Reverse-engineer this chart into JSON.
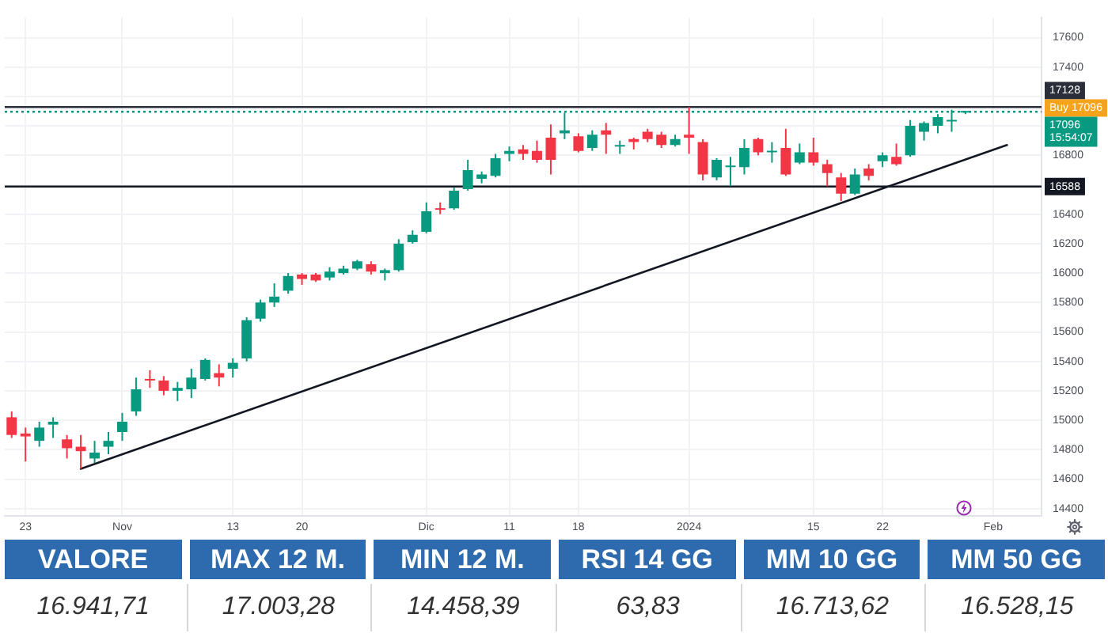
{
  "chart_data": [
    {
      "type": "candlestick",
      "categories": [
        null,
        "23",
        null,
        null,
        null,
        null,
        null,
        null,
        "Nov",
        null,
        null,
        null,
        null,
        null,
        null,
        null,
        "13",
        null,
        null,
        null,
        null,
        "20",
        null,
        null,
        null,
        null,
        null,
        null,
        null,
        null,
        "Dic",
        null,
        null,
        null,
        null,
        null,
        "11",
        null,
        null,
        null,
        null,
        "18",
        null,
        null,
        null,
        null,
        null,
        null,
        null,
        "2024",
        null,
        null,
        null,
        null,
        null,
        null,
        null,
        null,
        "15",
        null,
        null,
        null,
        null,
        "22",
        null,
        null,
        null,
        null,
        null,
        null,
        null,
        "Feb",
        null,
        null,
        null
      ],
      "ohlc": [
        [
          15020,
          15060,
          14880,
          14900
        ],
        [
          14910,
          14950,
          14720,
          14890
        ],
        [
          14860,
          14990,
          14820,
          14950
        ],
        [
          14970,
          15020,
          14880,
          14990
        ],
        [
          14870,
          14900,
          14740,
          14810
        ],
        [
          14820,
          14900,
          14670,
          14790
        ],
        [
          14740,
          14860,
          14710,
          14780
        ],
        [
          14820,
          14920,
          14770,
          14860
        ],
        [
          14920,
          15050,
          14860,
          14990
        ],
        [
          15060,
          15290,
          15030,
          15210
        ],
        [
          15280,
          15340,
          15220,
          15270
        ],
        [
          15270,
          15300,
          15170,
          15200
        ],
        [
          15200,
          15260,
          15130,
          15220
        ],
        [
          15210,
          15350,
          15150,
          15290
        ],
        [
          15280,
          15420,
          15270,
          15410
        ],
        [
          15320,
          15380,
          15230,
          15290
        ],
        [
          15350,
          15420,
          15290,
          15390
        ],
        [
          15420,
          15700,
          15400,
          15680
        ],
        [
          15690,
          15820,
          15670,
          15800
        ],
        [
          15800,
          15930,
          15770,
          15840
        ],
        [
          15880,
          16000,
          15860,
          15980
        ],
        [
          15990,
          16000,
          15920,
          15960
        ],
        [
          15990,
          16000,
          15940,
          15950
        ],
        [
          15970,
          16040,
          15950,
          16010
        ],
        [
          16000,
          16050,
          15990,
          16030
        ],
        [
          16030,
          16090,
          16020,
          16080
        ],
        [
          16060,
          16080,
          15990,
          16010
        ],
        [
          16000,
          16030,
          15950,
          16020
        ],
        [
          16020,
          16230,
          16010,
          16200
        ],
        [
          16210,
          16290,
          16200,
          16260
        ],
        [
          16280,
          16480,
          16270,
          16420
        ],
        [
          16440,
          16480,
          16400,
          16430
        ],
        [
          16440,
          16580,
          16430,
          16560
        ],
        [
          16570,
          16770,
          16560,
          16700
        ],
        [
          16640,
          16690,
          16610,
          16670
        ],
        [
          16660,
          16810,
          16650,
          16780
        ],
        [
          16810,
          16860,
          16760,
          16830
        ],
        [
          16840,
          16870,
          16770,
          16810
        ],
        [
          16830,
          16900,
          16750,
          16770
        ],
        [
          16920,
          17010,
          16670,
          16770
        ],
        [
          16950,
          17090,
          16910,
          16970
        ],
        [
          16930,
          16950,
          16820,
          16830
        ],
        [
          16850,
          16970,
          16830,
          16940
        ],
        [
          16970,
          17020,
          16810,
          16940
        ],
        [
          16860,
          16900,
          16810,
          16870
        ],
        [
          16910,
          16920,
          16840,
          16890
        ],
        [
          16960,
          16980,
          16890,
          16910
        ],
        [
          16940,
          16960,
          16850,
          16870
        ],
        [
          16870,
          16940,
          16860,
          16910
        ],
        [
          16940,
          17130,
          16810,
          16920
        ],
        [
          16890,
          16910,
          16630,
          16670
        ],
        [
          16650,
          16780,
          16630,
          16770
        ],
        [
          16720,
          16790,
          16590,
          16730
        ],
        [
          16720,
          16910,
          16670,
          16850
        ],
        [
          16910,
          16920,
          16800,
          16820
        ],
        [
          16820,
          16890,
          16750,
          16830
        ],
        [
          16850,
          16980,
          16660,
          16670
        ],
        [
          16750,
          16880,
          16740,
          16820
        ],
        [
          16820,
          16920,
          16730,
          16750
        ],
        [
          16740,
          16770,
          16590,
          16680
        ],
        [
          16650,
          16680,
          16490,
          16540
        ],
        [
          16540,
          16710,
          16530,
          16670
        ],
        [
          16710,
          16740,
          16630,
          16660
        ],
        [
          16760,
          16820,
          16720,
          16800
        ],
        [
          16790,
          16880,
          16730,
          16740
        ],
        [
          16800,
          17040,
          16790,
          17000
        ],
        [
          16960,
          17030,
          16900,
          17020
        ],
        [
          17000,
          17080,
          16950,
          17060
        ],
        [
          17030,
          17110,
          16960,
          17040
        ],
        [
          17090,
          17100,
          17080,
          17096
        ],
        null,
        null,
        null,
        null,
        null
      ],
      "colors": [
        "#f23645",
        "#f23645",
        "#089981",
        "#089981",
        "#f23645",
        "#f23645",
        "#089981",
        "#089981",
        "#089981",
        "#089981",
        "#f23645",
        "#f23645",
        "#089981",
        "#089981",
        "#089981",
        "#f23645",
        "#089981",
        "#089981",
        "#089981",
        "#089981",
        "#089981",
        "#f23645",
        "#f23645",
        "#089981",
        "#089981",
        "#089981",
        "#f23645",
        "#089981",
        "#089981",
        "#089981",
        "#089981",
        "#f23645",
        "#089981",
        "#089981",
        "#089981",
        "#089981",
        "#089981",
        "#f23645",
        "#f23645",
        "#f23645",
        "#089981",
        "#f23645",
        "#089981",
        "#f23645",
        "#089981",
        "#f23645",
        "#f23645",
        "#f23645",
        "#089981",
        "#f23645",
        "#f23645",
        "#089981",
        "#089981",
        "#089981",
        "#f23645",
        "#089981",
        "#f23645",
        "#089981",
        "#f23645",
        "#f23645",
        "#f23645",
        "#089981",
        "#f23645",
        "#089981",
        "#f23645",
        "#089981",
        "#089981",
        "#089981",
        "#089981",
        "#089981",
        null,
        null,
        null,
        null,
        null
      ],
      "series": [
        {
          "type": "line",
          "color": "#131722",
          "values": [
            null,
            null,
            null,
            null,
            null,
            14670,
            null,
            null,
            null,
            null,
            null,
            null,
            null,
            null,
            null,
            null,
            null,
            null,
            null,
            null,
            null,
            null,
            null,
            null,
            null,
            null,
            null,
            null,
            null,
            null,
            null,
            null,
            null,
            null,
            null,
            null,
            null,
            null,
            null,
            null,
            null,
            null,
            null,
            null,
            null,
            null,
            null,
            null,
            null,
            null,
            null,
            null,
            null,
            null,
            null,
            null,
            null,
            null,
            null,
            null,
            null,
            null,
            null,
            null,
            null,
            null,
            null,
            null,
            null,
            null,
            null,
            null,
            16870,
            null,
            null
          ]
        }
      ],
      "ylim": [
        14350,
        17735
      ],
      "yticks": [
        14400,
        14600,
        14800,
        15000,
        15200,
        15400,
        15600,
        15800,
        16000,
        16200,
        16400,
        {
          "value": 16600,
          "label": null
        },
        16800,
        {
          "value": 17000,
          "label": null
        },
        {
          "value": 17200,
          "label": null
        },
        17400,
        17600
      ],
      "grid": true,
      "ref_lines": [
        {
          "axis": "y",
          "value": 17128,
          "label": "17128",
          "color": "#2a2e39"
        },
        {
          "axis": "y",
          "value": 17096,
          "label": "17096\n15:54:07",
          "color": "#089981",
          "line_style": "dotted"
        },
        {
          "axis": "y",
          "value": 16588,
          "label": "16588",
          "color": "#131722"
        }
      ],
      "annotations": [
        "Buy 17096"
      ]
    },
    {
      "type": "other",
      "categories": [
        "VALORE",
        "MAX 12 M.",
        "MIN 12 M.",
        "RSI 14 GG",
        "MM 10 GG",
        "MM 50 GG"
      ],
      "value_labels": [
        "16.941,71",
        "17.003,28",
        "14.458,39",
        "63,83",
        "16.713,62",
        "16.528,15"
      ]
    }
  ]
}
